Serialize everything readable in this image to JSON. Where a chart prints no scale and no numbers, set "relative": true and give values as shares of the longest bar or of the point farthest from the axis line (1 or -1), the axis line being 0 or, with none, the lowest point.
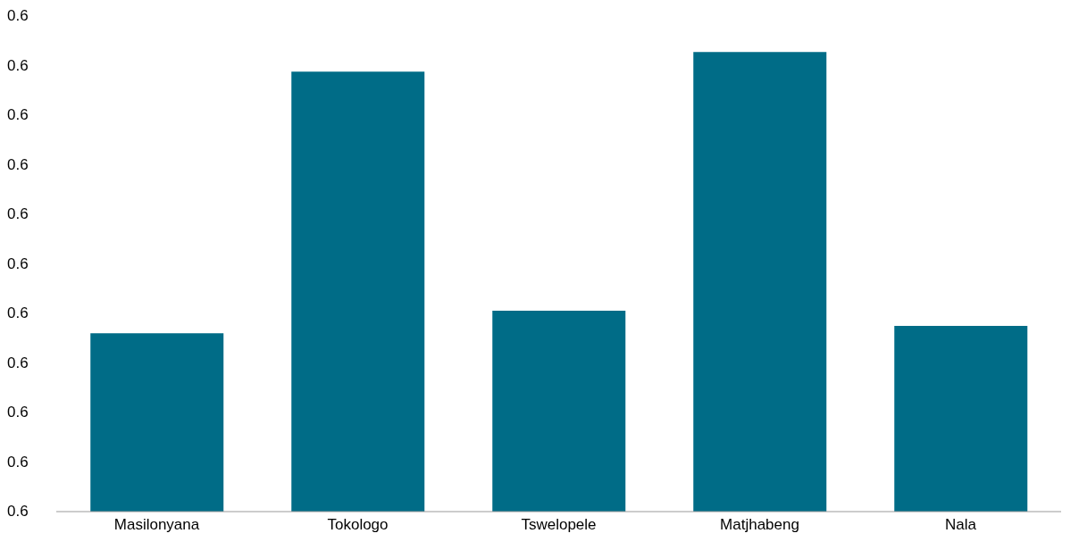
{
  "chart_data": {
    "type": "bar",
    "categories": [
      "Masilonyana",
      "Tokologo",
      "Tswelopele",
      "Matjhabeng",
      "Nala"
    ],
    "values": [
      0.388,
      0.957,
      0.437,
      1,
      0.404
    ],
    "color": "#006c87",
    "relative": true,
    "annotations": [
      "0.6",
      "0.6",
      "0.6",
      "0.6",
      "0.6",
      "0.6",
      "0.6",
      "0.6",
      "0.6",
      "0.6",
      "0.6"
    ],
    "grid": false
  }
}
